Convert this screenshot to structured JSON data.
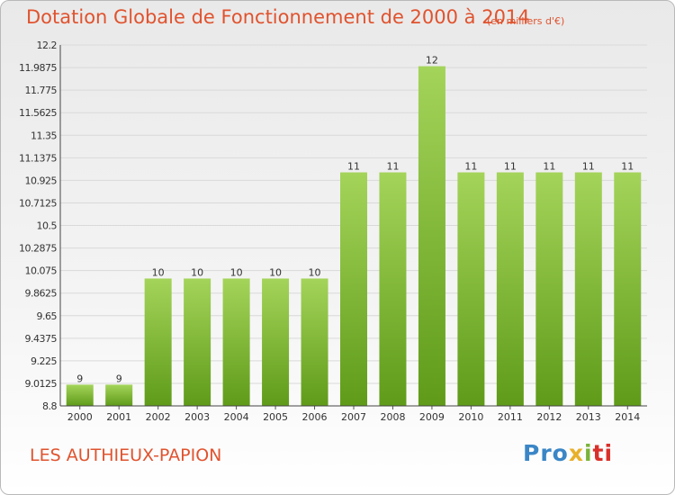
{
  "header": {
    "title": "Dotation Globale de Fonctionnement de 2000 à 2014",
    "unit": "(en milliers d'€)"
  },
  "footer": {
    "commune": "LES AUTHIEUX-PAPION",
    "logo": [
      "Pro",
      "x",
      "i",
      "ti"
    ]
  },
  "colors": {
    "bar_light": "#a4d45a",
    "bar_dark": "#5f9b19",
    "title": "#e0532e",
    "grid": "#d9d9d9"
  },
  "chart_data": {
    "type": "bar",
    "categories": [
      "2000",
      "2001",
      "2002",
      "2003",
      "2004",
      "2005",
      "2006",
      "2007",
      "2008",
      "2009",
      "2010",
      "2011",
      "2012",
      "2013",
      "2014"
    ],
    "values": [
      9,
      9,
      10,
      10,
      10,
      10,
      10,
      11,
      11,
      12,
      11,
      11,
      11,
      11,
      11
    ],
    "value_labels": [
      "9",
      "9",
      "10",
      "10",
      "10",
      "10",
      "10",
      "11",
      "11",
      "12",
      "11",
      "11",
      "11",
      "11",
      "11"
    ],
    "yticks": [
      "12.2",
      "11.9875",
      "11.775",
      "11.5625",
      "11.35",
      "11.1375",
      "10.925",
      "10.7125",
      "10.5",
      "10.2875",
      "10.075",
      "9.8625",
      "9.65",
      "9.4375",
      "9.225",
      "9.0125",
      "8.8"
    ],
    "ylim": [
      8.8,
      12.2
    ],
    "title": "Dotation Globale de Fonctionnement de 2000 à 2014",
    "xlabel": "",
    "ylabel": "",
    "grid": true
  }
}
